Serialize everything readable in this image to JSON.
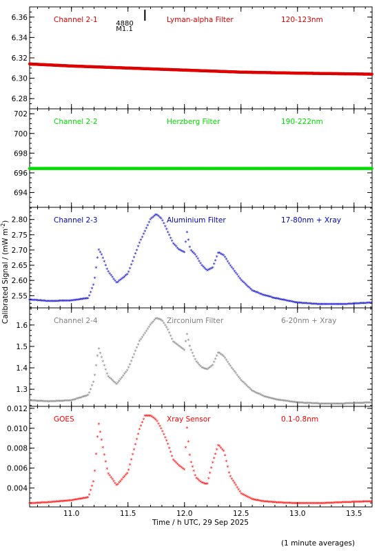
{
  "figure": {
    "ylabel": "Calibrated Signal / (mW m",
    "ylabel_sup": "-2",
    "ylabel_end": ")",
    "xlabel": "Time / h UTC, 29 Sep 2025",
    "footnote": "(1 minute averages)",
    "marker_top": "4880",
    "marker_bottom": "M1.1",
    "marker_time": 11.65
  },
  "chart_data": [
    {
      "type": "scatter",
      "panel": [
        "Channel 2-1",
        "Lyman-alpha Filter",
        "120-123nm"
      ],
      "color": "#dd0000",
      "xlim": [
        10.63,
        13.66
      ],
      "ylim": [
        6.27,
        6.37
      ],
      "yticks": [
        6.28,
        6.3,
        6.32,
        6.34,
        6.36
      ],
      "ytick_labels": [
        "6.28",
        "6.30",
        "6.32",
        "6.34",
        "6.36"
      ],
      "series": [
        {
          "x": [
            10.63,
            11.0,
            11.5,
            12.0,
            12.5,
            13.0,
            13.66
          ],
          "y": [
            6.314,
            6.312,
            6.31,
            6.308,
            6.306,
            6.305,
            6.304
          ]
        }
      ]
    },
    {
      "type": "scatter",
      "panel": [
        "Channel 2-2",
        "Herzberg Filter",
        "190-222nm"
      ],
      "color": "#00dd00",
      "xlim": [
        10.63,
        13.66
      ],
      "ylim": [
        692.5,
        702.5
      ],
      "yticks": [
        694,
        696,
        698,
        700,
        702
      ],
      "ytick_labels": [
        "694",
        "696",
        "698",
        "700",
        "702"
      ],
      "series": [
        {
          "x": [
            10.63,
            11.0,
            11.5,
            12.0,
            12.5,
            13.0,
            13.66
          ],
          "y": [
            696.45,
            696.45,
            696.45,
            696.45,
            696.45,
            696.45,
            696.45
          ]
        }
      ]
    },
    {
      "type": "scatter",
      "panel": [
        "Channel 2-3",
        "Aluminium Filter",
        "17-80nm + Xray"
      ],
      "color": "#0000cc",
      "xlim": [
        10.63,
        13.66
      ],
      "ylim": [
        2.51,
        2.84
      ],
      "yticks": [
        2.55,
        2.6,
        2.65,
        2.7,
        2.75,
        2.8
      ],
      "ytick_labels": [
        "2.55",
        "2.60",
        "2.65",
        "2.70",
        "2.75",
        "2.80"
      ],
      "series": [
        {
          "x": [
            10.63,
            10.8,
            11.0,
            11.15,
            11.2,
            11.24,
            11.27,
            11.32,
            11.4,
            11.5,
            11.6,
            11.7,
            11.75,
            11.8,
            11.85,
            11.9,
            11.95,
            12.0,
            12.02,
            12.05,
            12.1,
            12.15,
            12.2,
            12.25,
            12.3,
            12.35,
            12.4,
            12.5,
            12.6,
            12.7,
            12.8,
            13.0,
            13.2,
            13.4,
            13.66
          ],
          "y": [
            2.535,
            2.53,
            2.532,
            2.54,
            2.59,
            2.7,
            2.68,
            2.63,
            2.59,
            2.62,
            2.72,
            2.8,
            2.815,
            2.8,
            2.76,
            2.72,
            2.7,
            2.69,
            2.76,
            2.7,
            2.68,
            2.65,
            2.63,
            2.64,
            2.69,
            2.68,
            2.65,
            2.6,
            2.565,
            2.55,
            2.54,
            2.525,
            2.52,
            2.52,
            2.525
          ]
        }
      ]
    },
    {
      "type": "scatter",
      "panel": [
        "Channel 2-4",
        "Zirconium Filter",
        "6-20nm + Xray"
      ],
      "color": "#808080",
      "xlim": [
        10.63,
        13.66
      ],
      "ylim": [
        1.22,
        1.68
      ],
      "yticks": [
        1.3,
        1.4,
        1.5,
        1.6
      ],
      "ytick_labels": [
        "1.3",
        "1.4",
        "1.5",
        "1.6"
      ],
      "series": [
        {
          "x": [
            10.63,
            10.8,
            11.0,
            11.15,
            11.2,
            11.24,
            11.27,
            11.32,
            11.4,
            11.5,
            11.6,
            11.7,
            11.75,
            11.8,
            11.85,
            11.9,
            11.95,
            12.0,
            12.02,
            12.05,
            12.1,
            12.15,
            12.2,
            12.25,
            12.3,
            12.35,
            12.4,
            12.5,
            12.6,
            12.7,
            12.8,
            13.0,
            13.2,
            13.4,
            13.66
          ],
          "y": [
            1.245,
            1.24,
            1.245,
            1.27,
            1.34,
            1.49,
            1.44,
            1.36,
            1.32,
            1.39,
            1.52,
            1.6,
            1.63,
            1.62,
            1.58,
            1.52,
            1.5,
            1.48,
            1.56,
            1.49,
            1.43,
            1.4,
            1.39,
            1.41,
            1.47,
            1.45,
            1.41,
            1.34,
            1.29,
            1.265,
            1.25,
            1.235,
            1.23,
            1.23,
            1.235
          ]
        }
      ]
    },
    {
      "type": "scatter",
      "panel": [
        "GOES",
        "Xray Sensor",
        "0.1-0.8nm"
      ],
      "color": "#ff0000",
      "xlim": [
        10.63,
        13.66
      ],
      "ylim": [
        0.0021,
        0.0122
      ],
      "yticks": [
        0.004,
        0.006,
        0.008,
        0.01,
        0.012
      ],
      "ytick_labels": [
        "0.004",
        "0.006",
        "0.008",
        "0.010",
        "0.012"
      ],
      "series": [
        {
          "x": [
            10.63,
            10.8,
            11.0,
            11.15,
            11.2,
            11.24,
            11.27,
            11.32,
            11.4,
            11.5,
            11.6,
            11.65,
            11.7,
            11.75,
            11.8,
            11.85,
            11.9,
            11.95,
            12.0,
            12.02,
            12.05,
            12.1,
            12.15,
            12.2,
            12.25,
            12.3,
            12.35,
            12.4,
            12.5,
            12.6,
            12.7,
            12.8,
            13.0,
            13.2,
            13.4,
            13.66
          ],
          "y": [
            0.0024,
            0.0025,
            0.0027,
            0.003,
            0.0048,
            0.0105,
            0.0085,
            0.0055,
            0.0042,
            0.0055,
            0.0098,
            0.0112,
            0.0112,
            0.0108,
            0.0098,
            0.0085,
            0.0068,
            0.0062,
            0.0058,
            0.0102,
            0.0068,
            0.005,
            0.0045,
            0.0043,
            0.0065,
            0.0083,
            0.0076,
            0.0052,
            0.0034,
            0.0028,
            0.0026,
            0.0025,
            0.0024,
            0.0024,
            0.0025,
            0.0026
          ]
        }
      ]
    }
  ],
  "xaxis": {
    "ticks": [
      11.0,
      11.5,
      12.0,
      12.5,
      13.0,
      13.5
    ],
    "labels": [
      "11.0",
      "11.5",
      "12.0",
      "12.5",
      "13.0",
      "13.5"
    ]
  }
}
